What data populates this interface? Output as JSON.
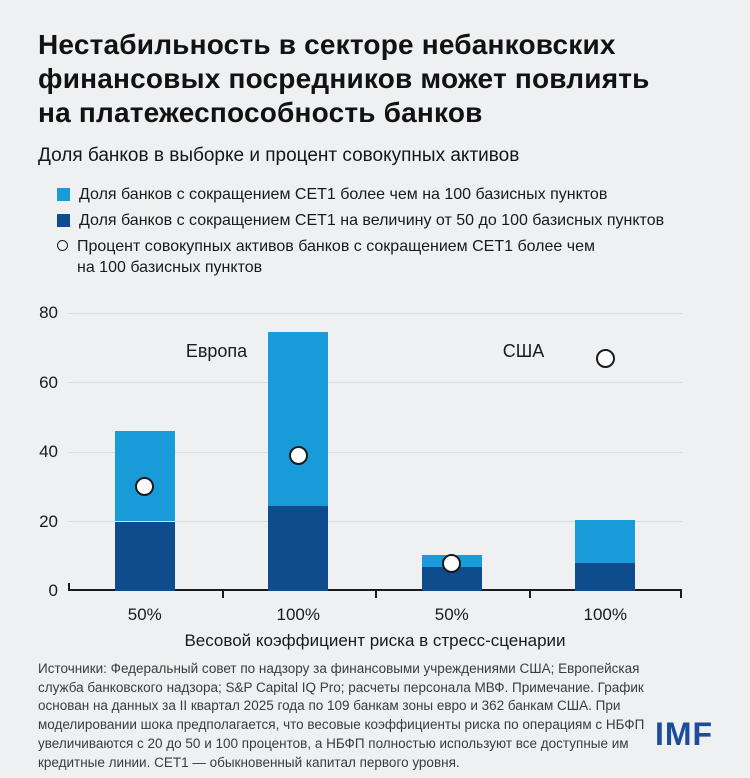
{
  "header": {
    "title": "Нестабильность в секторе небанковских финансовых посредников может повлиять на платежеспособность банков",
    "title_lines": [
      "Нестабильность в секторе небанковских",
      "финансовых посредников может повлиять",
      "на платежеспособность банков"
    ],
    "subtitle": "Доля банков в выборке и процент совокупных активов"
  },
  "legend": [
    {
      "marker": "square",
      "color": "#189bd8",
      "lines": [
        "Доля банков с сокращением CET1 более чем на 100 базисных пунктов"
      ]
    },
    {
      "marker": "square",
      "color": "#0e4c8d",
      "lines": [
        "Доля банков с сокращением CET1 на величину от 50 до 100 базисных пунктов"
      ]
    },
    {
      "marker": "circle",
      "color": "#1a1a1a",
      "lines": [
        "Процент совокупных активов банков с сокращением CET1 более чем",
        "на 100 базисных пунктов"
      ]
    }
  ],
  "chart_data": {
    "type": "bar",
    "stacked": true,
    "title": "Доля банков в выборке и процент совокупных активов",
    "categories": [
      "50%",
      "100%",
      "50%",
      "100%"
    ],
    "group_labels": [
      {
        "label": "Европа",
        "span": [
          0,
          1
        ]
      },
      {
        "label": "США",
        "span": [
          2,
          3
        ]
      }
    ],
    "series": [
      {
        "name": "Доля банков с сокращением CET1 на величину от 50 до 100 базисных пунктов",
        "color": "#0e4c8d",
        "values": [
          20,
          24.5,
          7,
          8
        ]
      },
      {
        "name": "Доля банков с сокращением CET1 более чем на 100 базисных пунктов",
        "color": "#189bd8",
        "values": [
          26,
          50,
          3.5,
          12.5
        ]
      }
    ],
    "stack_totals": [
      46,
      74.5,
      10.5,
      20.5
    ],
    "scatter": {
      "name": "Процент совокупных активов банков с сокращением CET1 более чем на 100 базисных пунктов",
      "marker": "open-circle",
      "values": [
        30,
        39,
        8,
        67
      ]
    },
    "ylim": [
      0,
      80
    ],
    "yticks": [
      0,
      20,
      40,
      60,
      80
    ],
    "xlabel": "Весовой коэффициент риска в стресс-сценарии",
    "grid": true,
    "legend_position": "top"
  },
  "footer": {
    "text": "Источники: Федеральный совет по надзору за финансовыми учреждениями США; Европейская служба банковского надзора; S&P Capital IQ Pro; расчеты персонала МВФ. Примечание. График основан на данных за II квартал 2025 года по 109 банкам зоны евро и 362 банкам США. При моделировании шока предполагается, что весовые коэффициенты риска по операциям с НБФП увеличиваются с 20 до 50 и 100 процентов, а НБФП полностью используют все доступные им кредитные линии. CET1 — обыкновенный капитал первого уровня.",
    "lines": [
      "Источники: Федеральный совет по надзору за финансовыми учреждениями США; Европейская",
      "служба банковского надзора; S&P Capital IQ Pro; расчеты персонала МВФ. Примечание. График",
      "основан на данных за II квартал 2025 года по 109 банкам зоны евро и 362 банкам США. При",
      "моделировании шока предполагается, что весовые коэффициенты риска по операциям с НБФП",
      "увеличиваются с 20 до 50 и 100 процентов, а НБФП полностью используют все доступные им",
      "кредитные линии. CET1 — обыкновенный капитал первого уровня."
    ]
  },
  "logo": {
    "text": "IMF",
    "color": "#1b4c9e"
  }
}
